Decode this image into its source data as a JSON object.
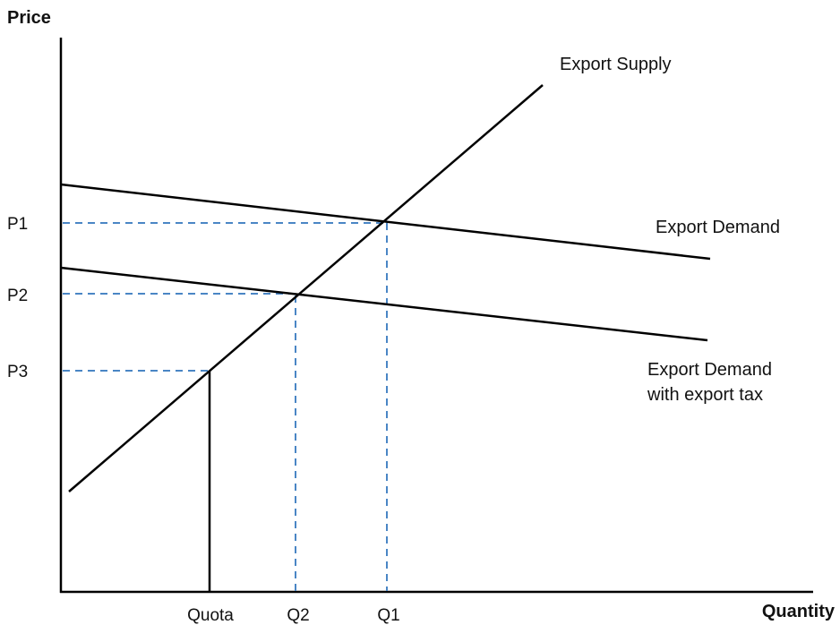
{
  "diagram": {
    "y_axis_title": "Price",
    "x_axis_title": "Quantity",
    "price_levels": [
      "P1",
      "P2",
      "P3"
    ],
    "quantity_levels": [
      "Quota",
      "Q2",
      "Q1"
    ],
    "curves": {
      "supply": "Export Supply",
      "demand": "Export Demand",
      "demand_tax_line1": "Export Demand",
      "demand_tax_line2": "with export tax"
    },
    "colors": {
      "curve": "#000000",
      "guide": "#4a86c5"
    }
  }
}
